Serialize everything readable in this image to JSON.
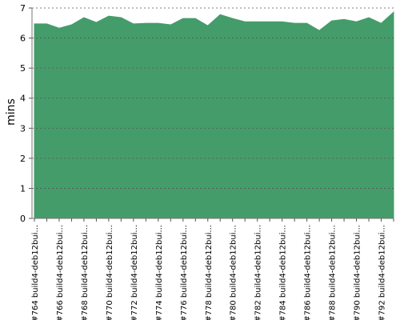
{
  "chart_data": {
    "type": "area",
    "y_label": "mins",
    "categories": [
      "#764 build4-deb12bui...",
      null,
      "#766 build4-deb12bui...",
      null,
      "#768 build4-deb12bui...",
      null,
      "#770 build4-deb12bui...",
      null,
      "#772 build4-deb12bui...",
      null,
      "#774 build4-deb12bui...",
      null,
      "#776 build4-deb12bui...",
      null,
      "#778 build4-deb12bui...",
      null,
      "#780 build4-deb12bui...",
      null,
      "#782 build4-deb12bui...",
      null,
      "#784 build4-deb12bui...",
      null,
      "#786 build4-deb12bui...",
      null,
      "#788 build4-deb12bui...",
      null,
      "#790 build4-deb12bui...",
      null,
      "#792 build4-deb12bui...",
      null
    ],
    "values": [
      6.47,
      6.47,
      6.33,
      6.44,
      6.68,
      6.52,
      6.73,
      6.68,
      6.47,
      6.49,
      6.49,
      6.44,
      6.65,
      6.65,
      6.41,
      6.78,
      6.65,
      6.54,
      6.54,
      6.54,
      6.54,
      6.49,
      6.49,
      6.25,
      6.57,
      6.62,
      6.54,
      6.68,
      6.49,
      6.86
    ],
    "color": "#459c6b",
    "ylim": [
      0,
      7
    ],
    "yticks": [
      0,
      1,
      2,
      3,
      4,
      5,
      6,
      7
    ],
    "grid": true
  }
}
